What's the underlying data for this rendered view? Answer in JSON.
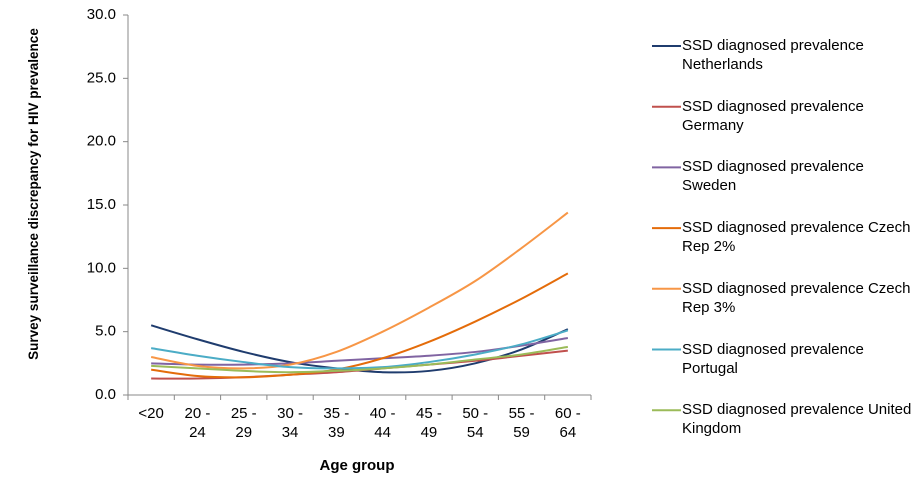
{
  "chart_data": {
    "type": "line",
    "y_label": "Survey surveillance discrepancy for HIV prevalence",
    "x_label": "Age group",
    "categories": [
      "<20",
      "20 - 24",
      "25 - 29",
      "30 - 34",
      "35 - 39",
      "40 - 44",
      "45 - 49",
      "50 - 54",
      "55 - 59",
      "60 - 64"
    ],
    "ylim": [
      0,
      30
    ],
    "yticks": [
      {
        "value": 0,
        "label": "0.0"
      },
      {
        "value": 5,
        "label": "5.0"
      },
      {
        "value": 10,
        "label": "10.0"
      },
      {
        "value": 15,
        "label": "15.0"
      },
      {
        "value": 20,
        "label": "20.0"
      },
      {
        "value": 25,
        "label": "25.0"
      },
      {
        "value": 30,
        "label": "30.0"
      }
    ],
    "grid": false,
    "legend": "right",
    "series": [
      {
        "name": "SSD diagnosed prevalence Netherlands",
        "color": "#1f3c6e",
        "values": [
          5.5,
          4.4,
          3.4,
          2.6,
          2.1,
          1.8,
          1.9,
          2.5,
          3.6,
          5.2
        ]
      },
      {
        "name": "SSD diagnosed prevalence Germany",
        "color": "#c0504d",
        "values": [
          1.3,
          1.3,
          1.4,
          1.6,
          1.8,
          2.1,
          2.4,
          2.7,
          3.1,
          3.5
        ]
      },
      {
        "name": "SSD diagnosed prevalence Sweden",
        "color": "#8064a2",
        "values": [
          2.5,
          2.4,
          2.4,
          2.5,
          2.7,
          2.9,
          3.1,
          3.4,
          3.9,
          4.5
        ]
      },
      {
        "name": "SSD diagnosed prevalence Czech Rep 2%",
        "color": "#e46c0a",
        "values": [
          2.0,
          1.5,
          1.4,
          1.6,
          2.0,
          2.9,
          4.2,
          5.8,
          7.6,
          9.6
        ]
      },
      {
        "name": "SSD diagnosed prevalence Czech Rep 3%",
        "color": "#f79646",
        "values": [
          3.0,
          2.3,
          2.1,
          2.4,
          3.4,
          5.0,
          6.9,
          9.0,
          11.6,
          14.4
        ]
      },
      {
        "name": "SSD diagnosed prevalence Portugal",
        "color": "#4bacc6",
        "values": [
          3.7,
          3.1,
          2.6,
          2.2,
          2.1,
          2.2,
          2.6,
          3.2,
          4.0,
          5.1
        ]
      },
      {
        "name": "SSD diagnosed prevalence United Kingdom",
        "color": "#9bbb59",
        "values": [
          2.3,
          2.1,
          1.9,
          1.8,
          1.9,
          2.1,
          2.4,
          2.8,
          3.2,
          3.8
        ]
      }
    ]
  }
}
